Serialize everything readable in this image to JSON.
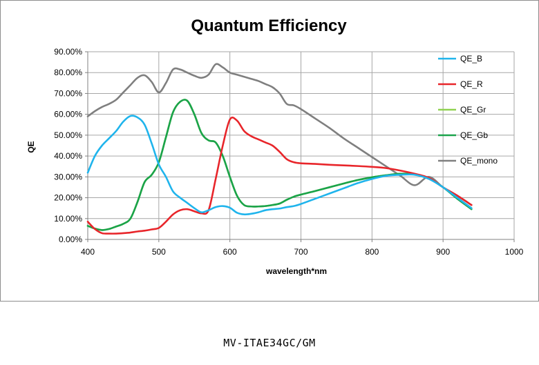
{
  "caption": "MV-ITAE34GC/GM",
  "chart_data": {
    "type": "line",
    "title": "Quantum Efficiency",
    "xlabel": "wavelength*nm",
    "ylabel": "QE",
    "xlim": [
      400,
      1000
    ],
    "ylim": [
      0,
      0.9
    ],
    "xticks": [
      "400",
      "500",
      "600",
      "700",
      "800",
      "900",
      "1000"
    ],
    "yticks": [
      "0.00%",
      "10.00%",
      "20.00%",
      "30.00%",
      "40.00%",
      "50.00%",
      "60.00%",
      "70.00%",
      "80.00%",
      "90.00%"
    ],
    "grid": true,
    "legend_position": "right",
    "series": [
      {
        "name": "QE_B",
        "color": "#1fb4ec",
        "x": [
          400,
          410,
          420,
          430,
          440,
          450,
          460,
          470,
          480,
          490,
          500,
          510,
          520,
          530,
          540,
          550,
          560,
          570,
          580,
          590,
          600,
          610,
          620,
          630,
          640,
          650,
          660,
          670,
          680,
          690,
          700,
          720,
          740,
          760,
          780,
          800,
          820,
          840,
          860,
          880,
          900,
          920,
          940
        ],
        "y": [
          0.32,
          0.4,
          0.45,
          0.485,
          0.52,
          0.565,
          0.592,
          0.585,
          0.55,
          0.46,
          0.36,
          0.3,
          0.23,
          0.2,
          0.175,
          0.15,
          0.13,
          0.14,
          0.155,
          0.16,
          0.152,
          0.128,
          0.12,
          0.123,
          0.13,
          0.14,
          0.145,
          0.148,
          0.155,
          0.16,
          0.17,
          0.195,
          0.22,
          0.245,
          0.27,
          0.29,
          0.305,
          0.31,
          0.31,
          0.29,
          0.25,
          0.2,
          0.15
        ]
      },
      {
        "name": "QE_R",
        "color": "#e8252a",
        "x": [
          400,
          410,
          420,
          430,
          440,
          450,
          460,
          470,
          480,
          490,
          500,
          510,
          520,
          530,
          540,
          550,
          560,
          570,
          580,
          590,
          600,
          610,
          620,
          630,
          640,
          650,
          660,
          670,
          680,
          690,
          700,
          720,
          740,
          760,
          780,
          800,
          820,
          840,
          860,
          880,
          900,
          920,
          940
        ],
        "y": [
          0.085,
          0.05,
          0.03,
          0.028,
          0.028,
          0.03,
          0.033,
          0.038,
          0.042,
          0.048,
          0.055,
          0.085,
          0.12,
          0.14,
          0.145,
          0.135,
          0.125,
          0.14,
          0.29,
          0.45,
          0.575,
          0.57,
          0.52,
          0.495,
          0.48,
          0.465,
          0.45,
          0.42,
          0.385,
          0.37,
          0.365,
          0.362,
          0.358,
          0.355,
          0.352,
          0.348,
          0.342,
          0.33,
          0.315,
          0.295,
          0.25,
          0.21,
          0.165
        ]
      },
      {
        "name": "QE_Gr",
        "color": "#8fd14f",
        "x": [
          400,
          410,
          420,
          430,
          440,
          450,
          460,
          470,
          480,
          490,
          500,
          510,
          520,
          530,
          540,
          550,
          560,
          570,
          580,
          590,
          600,
          610,
          620,
          630,
          640,
          650,
          660,
          670,
          680,
          690,
          700,
          720,
          740,
          760,
          780,
          800,
          820,
          840,
          860,
          880,
          900,
          920,
          940
        ],
        "y": [
          0.065,
          0.052,
          0.045,
          0.05,
          0.062,
          0.075,
          0.1,
          0.18,
          0.275,
          0.31,
          0.37,
          0.49,
          0.61,
          0.66,
          0.665,
          0.6,
          0.51,
          0.475,
          0.465,
          0.4,
          0.3,
          0.21,
          0.165,
          0.158,
          0.158,
          0.16,
          0.165,
          0.172,
          0.19,
          0.205,
          0.215,
          0.232,
          0.25,
          0.268,
          0.285,
          0.298,
          0.308,
          0.315,
          0.313,
          0.292,
          0.25,
          0.2,
          0.15
        ]
      },
      {
        "name": "QE_Gb",
        "color": "#1aa34a",
        "x": [
          400,
          410,
          420,
          430,
          440,
          450,
          460,
          470,
          480,
          490,
          500,
          510,
          520,
          530,
          540,
          550,
          560,
          570,
          580,
          590,
          600,
          610,
          620,
          630,
          640,
          650,
          660,
          670,
          680,
          690,
          700,
          720,
          740,
          760,
          780,
          800,
          820,
          840,
          860,
          880,
          900,
          920,
          940
        ],
        "y": [
          0.065,
          0.052,
          0.045,
          0.05,
          0.062,
          0.075,
          0.1,
          0.18,
          0.275,
          0.31,
          0.37,
          0.49,
          0.61,
          0.66,
          0.665,
          0.6,
          0.51,
          0.475,
          0.465,
          0.4,
          0.3,
          0.21,
          0.165,
          0.158,
          0.158,
          0.16,
          0.165,
          0.172,
          0.19,
          0.205,
          0.215,
          0.232,
          0.25,
          0.268,
          0.285,
          0.298,
          0.308,
          0.315,
          0.313,
          0.292,
          0.25,
          0.195,
          0.145
        ]
      },
      {
        "name": "QE_mono",
        "color": "#7f7f7f",
        "x": [
          400,
          410,
          420,
          430,
          440,
          450,
          460,
          470,
          480,
          490,
          500,
          510,
          520,
          530,
          540,
          550,
          560,
          570,
          580,
          590,
          600,
          610,
          620,
          630,
          640,
          650,
          660,
          670,
          680,
          690,
          700,
          720,
          740,
          760,
          780,
          800,
          820,
          840,
          860,
          880,
          900,
          920,
          940
        ],
        "y": [
          0.59,
          0.615,
          0.635,
          0.65,
          0.67,
          0.705,
          0.74,
          0.775,
          0.787,
          0.755,
          0.705,
          0.75,
          0.815,
          0.815,
          0.8,
          0.785,
          0.775,
          0.79,
          0.84,
          0.825,
          0.8,
          0.79,
          0.78,
          0.77,
          0.76,
          0.745,
          0.73,
          0.7,
          0.65,
          0.643,
          0.625,
          0.58,
          0.535,
          0.485,
          0.44,
          0.395,
          0.35,
          0.305,
          0.26,
          0.3,
          0.25,
          0.21,
          0.165
        ]
      }
    ]
  }
}
